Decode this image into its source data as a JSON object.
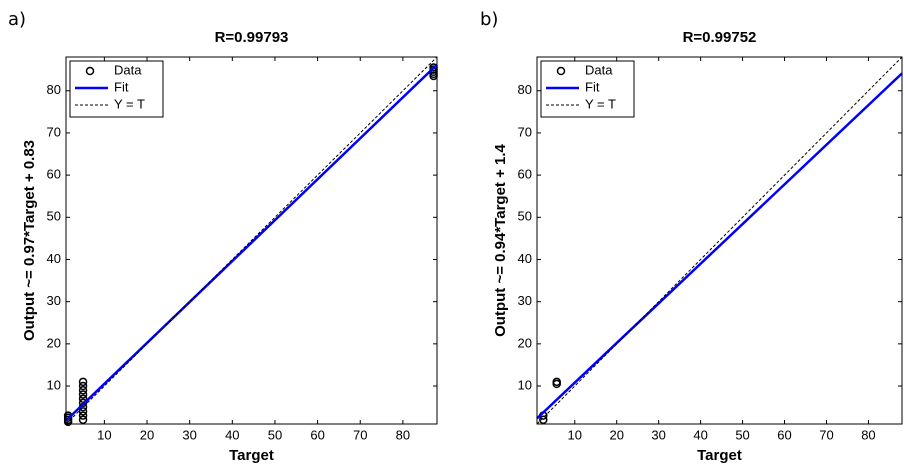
{
  "chart_data": [
    {
      "type": "scatter",
      "label": "a)",
      "title": "R=0.99793",
      "xlabel": "Target",
      "ylabel": "Output ~= 0.97*Target + 0.83",
      "xlim": [
        1,
        88
      ],
      "ylim": [
        1,
        88
      ],
      "xticks": [
        10,
        20,
        30,
        40,
        50,
        60,
        70,
        80
      ],
      "yticks": [
        10,
        20,
        30,
        40,
        50,
        60,
        70,
        80
      ],
      "grid": false,
      "legend": "upper left",
      "series": [
        {
          "name": "Data",
          "style": "markers",
          "color": "#000000",
          "x": [
            1.5,
            1.5,
            1.5,
            1.5,
            5,
            5,
            5,
            5,
            5,
            5,
            5,
            5,
            5,
            5,
            87.2,
            87.2,
            87.2,
            87.2,
            87.2
          ],
          "values": [
            1.5,
            2,
            2.5,
            3,
            2,
            3,
            4,
            5,
            6,
            7,
            8,
            9,
            10,
            11,
            83.5,
            84,
            84.5,
            85,
            85.5
          ]
        },
        {
          "name": "Fit",
          "style": "line",
          "color": "#0000ff",
          "x": [
            1,
            88
          ],
          "values": [
            1.8,
            86.19
          ]
        },
        {
          "name": "Y = T",
          "style": "dashed",
          "color": "#000000",
          "x": [
            1,
            88
          ],
          "values": [
            1,
            88
          ]
        }
      ]
    },
    {
      "type": "scatter",
      "label": "b)",
      "title": "R=0.99752",
      "xlabel": "Target",
      "ylabel": "Output ~= 0.94*Target + 1.4",
      "xlim": [
        1,
        88
      ],
      "ylim": [
        1,
        88
      ],
      "xticks": [
        10,
        20,
        30,
        40,
        50,
        60,
        70,
        80
      ],
      "yticks": [
        10,
        20,
        30,
        40,
        50,
        60,
        70,
        80
      ],
      "grid": false,
      "legend": "upper left",
      "series": [
        {
          "name": "Data",
          "style": "markers",
          "color": "#000000",
          "x": [
            2.5,
            2.5,
            5.7,
            5.7
          ],
          "values": [
            2,
            3,
            10.5,
            11
          ]
        },
        {
          "name": "Fit",
          "style": "line",
          "color": "#0000ff",
          "x": [
            1,
            88
          ],
          "values": [
            2.34,
            84.12
          ]
        },
        {
          "name": "Y = T",
          "style": "dashed",
          "color": "#000000",
          "x": [
            1,
            88
          ],
          "values": [
            1,
            88
          ]
        }
      ]
    }
  ]
}
